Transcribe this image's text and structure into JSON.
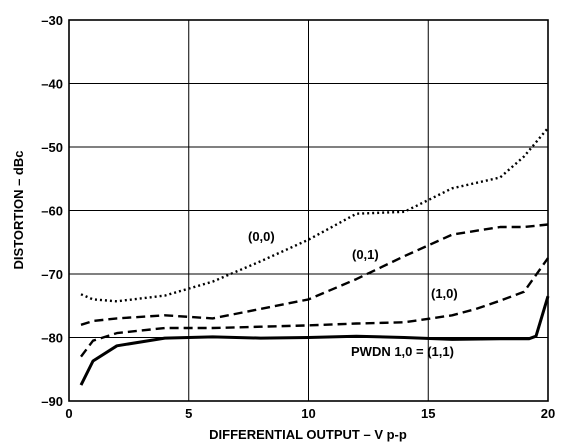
{
  "chart_data": {
    "type": "line",
    "title": "",
    "xlabel": "DIFFERENTIAL OUTPUT – V p-p",
    "ylabel": "DISTORTION – dBc",
    "xlim": [
      0,
      20
    ],
    "ylim": [
      -90,
      -30
    ],
    "x_ticks": [
      "0",
      "5",
      "10",
      "15",
      "20"
    ],
    "y_ticks": [
      "–30",
      "–40",
      "–50",
      "–60",
      "–70",
      "–80",
      "–90"
    ],
    "grid": true,
    "series": [
      {
        "name": "(0,0)",
        "style": "dotted",
        "x": [
          0.5,
          1,
          2,
          4,
          6,
          8,
          10,
          12,
          14,
          16,
          18,
          19,
          20
        ],
        "y": [
          -73.2,
          -74.0,
          -74.3,
          -73.4,
          -71.2,
          -68.0,
          -64.6,
          -60.5,
          -60.2,
          -56.5,
          -54.8,
          -51.5,
          -47.0
        ]
      },
      {
        "name": "(0,1)",
        "style": "dashed",
        "x": [
          0.5,
          1,
          2,
          4,
          6,
          8,
          10,
          12,
          14,
          16,
          18,
          19,
          20
        ],
        "y": [
          -78.0,
          -77.4,
          -77.0,
          -76.5,
          -77.0,
          -75.5,
          -74.0,
          -70.8,
          -67.2,
          -63.8,
          -62.6,
          -62.6,
          -62.2
        ]
      },
      {
        "name": "(1,0)",
        "style": "dashed",
        "x": [
          0.5,
          1,
          2,
          4,
          6,
          8,
          10,
          12,
          14,
          16,
          17,
          18,
          19,
          20
        ],
        "y": [
          -83.0,
          -80.5,
          -79.3,
          -78.5,
          -78.5,
          -78.3,
          -78.1,
          -77.8,
          -77.6,
          -76.5,
          -75.5,
          -74.2,
          -72.8,
          -67.5
        ]
      },
      {
        "name": "PWDN 1,0 = (1,1)",
        "style": "solid",
        "x": [
          0.5,
          1,
          2,
          4,
          6,
          8,
          10,
          12,
          14,
          16,
          18,
          19.2,
          19.5,
          20
        ],
        "y": [
          -87.5,
          -83.7,
          -81.3,
          -80.1,
          -79.9,
          -80.1,
          -80.0,
          -79.8,
          -80.0,
          -80.3,
          -80.2,
          -80.2,
          -79.8,
          -73.5
        ]
      }
    ],
    "annotations": [
      "(0,0)",
      "(0,1)",
      "(1,0)",
      "PWDN 1,0 = (1,1)"
    ]
  }
}
